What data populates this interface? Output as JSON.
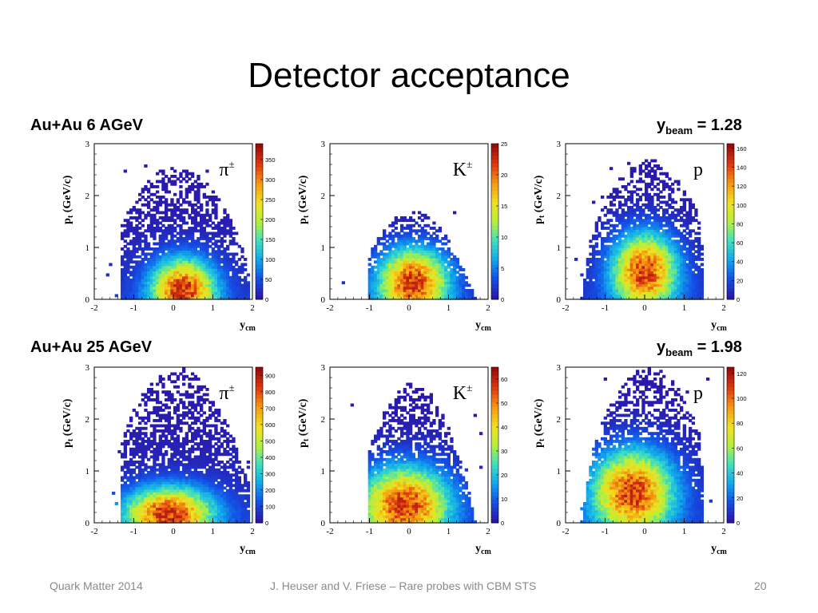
{
  "slide": {
    "title": "Detector acceptance",
    "row1_label": "Au+Au 6 AGeV",
    "row2_label": "Au+Au 25 AGeV",
    "ybeam1": {
      "symbol": "y",
      "subscript": "beam",
      "text": " = 1.28"
    },
    "ybeam2": {
      "symbol": "y",
      "subscript": "beam",
      "text": " = 1.98"
    }
  },
  "footer": {
    "left": "Quark Matter 2014",
    "center": "J. Heuser and V. Friese – Rare probes with CBM STS",
    "page": "20"
  },
  "colors": {
    "palette": [
      "#2b16a8",
      "#1450e6",
      "#10a8ec",
      "#3ee0c0",
      "#b6f03a",
      "#f0e020",
      "#f59a10",
      "#e03a10",
      "#9a0c0c"
    ]
  },
  "chart_data": [
    {
      "type": "heatmap",
      "particle": "π±",
      "energy": "6 AGeV",
      "xlabel": "ycm",
      "ylabel": "pt (GeV/c)",
      "xlim": [
        -2,
        2
      ],
      "ylim": [
        0,
        3
      ],
      "xticks": [
        -2,
        -1,
        0,
        1,
        2
      ],
      "yticks": [
        0,
        1,
        2,
        3
      ],
      "zmax": 390,
      "zticks": [
        0,
        50,
        100,
        150,
        200,
        250,
        300,
        350
      ],
      "peak": [
        0.25,
        0.18
      ],
      "spread": [
        0.55,
        0.42
      ],
      "shape": "pion",
      "edge_y_max": 2.6
    },
    {
      "type": "heatmap",
      "particle": "K±",
      "energy": "6 AGeV",
      "xlabel": "ycm",
      "ylabel": "pt (GeV/c)",
      "xlim": [
        -2,
        2
      ],
      "ylim": [
        0,
        3
      ],
      "xticks": [
        -2,
        -1,
        0,
        1,
        2
      ],
      "yticks": [
        0,
        1,
        2,
        3
      ],
      "zmax": 25,
      "zticks": [
        0,
        5,
        10,
        15,
        20,
        25
      ],
      "peak": [
        0.1,
        0.35
      ],
      "spread": [
        0.6,
        0.45
      ],
      "shape": "kaon",
      "edge_y_max": 1.7
    },
    {
      "type": "heatmap",
      "particle": "p",
      "energy": "6 AGeV",
      "xlabel": "ycm",
      "ylabel": "pt (GeV/c)",
      "xlim": [
        -2,
        2
      ],
      "ylim": [
        0,
        3
      ],
      "xticks": [
        -2,
        -1,
        0,
        1,
        2
      ],
      "yticks": [
        0,
        1,
        2,
        3
      ],
      "zmax": 165,
      "zticks": [
        0,
        20,
        40,
        60,
        80,
        100,
        120,
        140,
        160
      ],
      "peak": [
        0.0,
        0.55
      ],
      "spread": [
        0.55,
        0.5
      ],
      "shape": "proton",
      "edge_y_max": 2.7
    },
    {
      "type": "heatmap",
      "particle": "π±",
      "energy": "25 AGeV",
      "xlabel": "ycm",
      "ylabel": "pt (GeV/c)",
      "xlim": [
        -2,
        2
      ],
      "ylim": [
        0,
        3
      ],
      "xticks": [
        -2,
        -1,
        0,
        1,
        2
      ],
      "yticks": [
        0,
        1,
        2,
        3
      ],
      "zmax": 950,
      "zticks": [
        0,
        100,
        200,
        300,
        400,
        500,
        600,
        700,
        800,
        900
      ],
      "peak": [
        -0.1,
        0.18
      ],
      "spread": [
        0.75,
        0.35
      ],
      "shape": "pion",
      "edge_y_max": 3.0
    },
    {
      "type": "heatmap",
      "particle": "K±",
      "energy": "25 AGeV",
      "xlabel": "ycm",
      "ylabel": "pt (GeV/c)",
      "xlim": [
        -2,
        2
      ],
      "ylim": [
        0,
        3
      ],
      "xticks": [
        -2,
        -1,
        0,
        1,
        2
      ],
      "yticks": [
        0,
        1,
        2,
        3
      ],
      "zmax": 65,
      "zticks": [
        0,
        10,
        20,
        30,
        40,
        50,
        60
      ],
      "peak": [
        -0.1,
        0.35
      ],
      "spread": [
        0.75,
        0.5
      ],
      "shape": "kaon",
      "edge_y_max": 2.7
    },
    {
      "type": "heatmap",
      "particle": "p",
      "energy": "25 AGeV",
      "xlabel": "ycm",
      "ylabel": "pt (GeV/c)",
      "xlim": [
        -2,
        2
      ],
      "ylim": [
        0,
        3
      ],
      "xticks": [
        -2,
        -1,
        0,
        1,
        2
      ],
      "yticks": [
        0,
        1,
        2,
        3
      ],
      "zmax": 125,
      "zticks": [
        0,
        20,
        40,
        60,
        80,
        100,
        120
      ],
      "peak": [
        -0.3,
        0.6
      ],
      "spread": [
        0.7,
        0.55
      ],
      "shape": "proton",
      "edge_y_max": 3.0
    }
  ]
}
